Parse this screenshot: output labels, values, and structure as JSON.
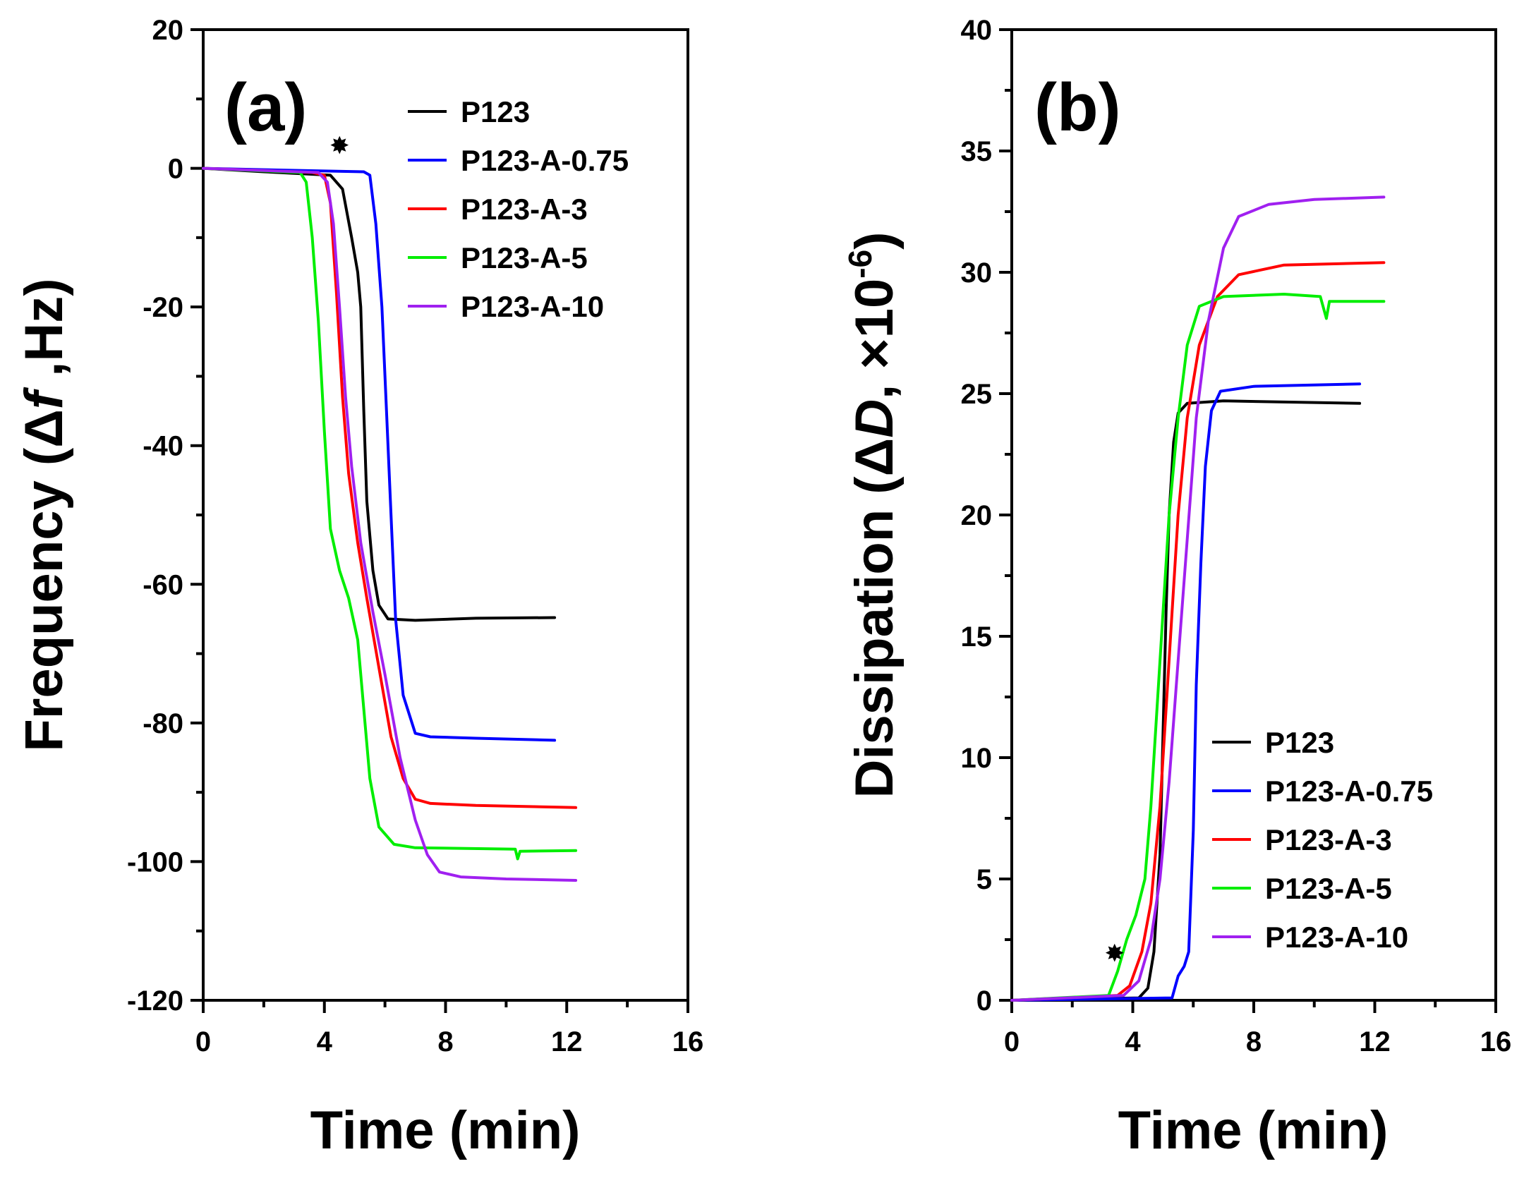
{
  "chart_data": [
    {
      "type": "line",
      "panel_label": "(a)",
      "xlabel": "Time (min)",
      "ylabel_prefix": "Frequency (Δ",
      "ylabel_italic": "f",
      "ylabel_suffix": " ,Hz)",
      "xlim": [
        0,
        16
      ],
      "ylim": [
        -120,
        20
      ],
      "xticks": [
        0,
        4,
        8,
        12,
        16
      ],
      "xtick_labels": [
        "0",
        "4",
        "8",
        "12",
        "16"
      ],
      "yticks": [
        20,
        0,
        -20,
        -40,
        -60,
        -80,
        -100,
        -120
      ],
      "ytick_labels": [
        "20",
        "0",
        "-20",
        "-40",
        "-60",
        "-80",
        "-100",
        "-120"
      ],
      "grid": false,
      "legend_position": "top-right",
      "marker_symbol": "✸",
      "marker": {
        "x": 4.5,
        "y": 3.5
      },
      "series": [
        {
          "name": "P123",
          "color": "#000000",
          "points": [
            [
              0,
              0
            ],
            [
              2,
              -0.5
            ],
            [
              4.2,
              -1
            ],
            [
              4.6,
              -3
            ],
            [
              4.9,
              -10
            ],
            [
              5.1,
              -15
            ],
            [
              5.2,
              -20
            ],
            [
              5.3,
              -35
            ],
            [
              5.4,
              -48
            ],
            [
              5.6,
              -58
            ],
            [
              5.8,
              -63
            ],
            [
              6.1,
              -65
            ],
            [
              7,
              -65.2
            ],
            [
              9,
              -64.9
            ],
            [
              11.6,
              -64.8
            ]
          ]
        },
        {
          "name": "P123-A-0.75",
          "color": "#0000ff",
          "points": [
            [
              0,
              0
            ],
            [
              3,
              -0.3
            ],
            [
              5.3,
              -0.5
            ],
            [
              5.5,
              -1
            ],
            [
              5.7,
              -8
            ],
            [
              5.9,
              -20
            ],
            [
              6.05,
              -35
            ],
            [
              6.2,
              -50
            ],
            [
              6.35,
              -65
            ],
            [
              6.6,
              -76
            ],
            [
              7,
              -81.5
            ],
            [
              7.5,
              -82
            ],
            [
              9,
              -82.2
            ],
            [
              11.6,
              -82.5
            ]
          ]
        },
        {
          "name": "P123-A-3",
          "color": "#ff0000",
          "points": [
            [
              0,
              0
            ],
            [
              3.6,
              -0.6
            ],
            [
              4.0,
              -1
            ],
            [
              4.2,
              -5
            ],
            [
              4.4,
              -18
            ],
            [
              4.6,
              -33
            ],
            [
              4.8,
              -44
            ],
            [
              5.1,
              -54
            ],
            [
              5.4,
              -62
            ],
            [
              5.8,
              -72
            ],
            [
              6.2,
              -82
            ],
            [
              6.6,
              -88
            ],
            [
              7.0,
              -91
            ],
            [
              7.5,
              -91.6
            ],
            [
              9,
              -91.9
            ],
            [
              12.3,
              -92.2
            ]
          ]
        },
        {
          "name": "P123-A-5",
          "color": "#00ee00",
          "points": [
            [
              0,
              0
            ],
            [
              3.2,
              -0.6
            ],
            [
              3.4,
              -2
            ],
            [
              3.6,
              -10
            ],
            [
              3.8,
              -22
            ],
            [
              4.0,
              -38
            ],
            [
              4.2,
              -52
            ],
            [
              4.5,
              -58
            ],
            [
              4.8,
              -62
            ],
            [
              5.1,
              -68
            ],
            [
              5.3,
              -78
            ],
            [
              5.5,
              -88
            ],
            [
              5.8,
              -95
            ],
            [
              6.3,
              -97.5
            ],
            [
              7,
              -98
            ],
            [
              10.3,
              -98.2
            ],
            [
              10.38,
              -99.6
            ],
            [
              10.46,
              -98.5
            ],
            [
              12.3,
              -98.4
            ]
          ]
        },
        {
          "name": "P123-A-10",
          "color": "#a020f0",
          "points": [
            [
              0,
              0
            ],
            [
              3.8,
              -0.6
            ],
            [
              4.1,
              -2
            ],
            [
              4.3,
              -8
            ],
            [
              4.5,
              -20
            ],
            [
              4.7,
              -33
            ],
            [
              4.9,
              -43
            ],
            [
              5.2,
              -54
            ],
            [
              5.6,
              -64
            ],
            [
              6.0,
              -73
            ],
            [
              6.5,
              -85
            ],
            [
              7.0,
              -94
            ],
            [
              7.4,
              -99
            ],
            [
              7.8,
              -101.5
            ],
            [
              8.5,
              -102.2
            ],
            [
              10,
              -102.5
            ],
            [
              12.3,
              -102.7
            ]
          ]
        }
      ]
    },
    {
      "type": "line",
      "panel_label": "(b)",
      "xlabel": "Time (min)",
      "ylabel_prefix": "Dissipation (Δ",
      "ylabel_italic": "D",
      "ylabel_suffix": ", ×10",
      "ylabel_exp": "-6",
      "ylabel_close": ")",
      "xlim": [
        0,
        16
      ],
      "ylim": [
        0,
        40
      ],
      "xticks": [
        0,
        4,
        8,
        12,
        16
      ],
      "xtick_labels": [
        "0",
        "4",
        "8",
        "12",
        "16"
      ],
      "yticks": [
        0,
        5,
        10,
        15,
        20,
        25,
        30,
        35,
        40
      ],
      "ytick_labels": [
        "0",
        "5",
        "10",
        "15",
        "20",
        "25",
        "30",
        "35",
        "40"
      ],
      "grid": false,
      "legend_position": "bottom-right",
      "marker_symbol": "✸",
      "marker": {
        "x": 3.4,
        "y": 2.0
      },
      "series": [
        {
          "name": "P123",
          "color": "#000000",
          "points": [
            [
              0,
              0
            ],
            [
              4.2,
              0.1
            ],
            [
              4.5,
              0.5
            ],
            [
              4.7,
              2
            ],
            [
              4.9,
              6
            ],
            [
              5.0,
              11
            ],
            [
              5.1,
              16
            ],
            [
              5.2,
              20
            ],
            [
              5.35,
              23
            ],
            [
              5.5,
              24.2
            ],
            [
              5.8,
              24.6
            ],
            [
              7,
              24.7
            ],
            [
              11.5,
              24.6
            ]
          ]
        },
        {
          "name": "P123-A-0.75",
          "color": "#0000ff",
          "points": [
            [
              0,
              0
            ],
            [
              5.3,
              0.1
            ],
            [
              5.5,
              1
            ],
            [
              5.7,
              1.4
            ],
            [
              5.85,
              2
            ],
            [
              6.0,
              7
            ],
            [
              6.1,
              13
            ],
            [
              6.25,
              18
            ],
            [
              6.4,
              22
            ],
            [
              6.6,
              24.3
            ],
            [
              6.9,
              25.1
            ],
            [
              8,
              25.3
            ],
            [
              11.5,
              25.4
            ]
          ]
        },
        {
          "name": "P123-A-3",
          "color": "#ff0000",
          "points": [
            [
              0,
              0
            ],
            [
              3.5,
              0.2
            ],
            [
              3.9,
              0.6
            ],
            [
              4.3,
              2
            ],
            [
              4.6,
              4
            ],
            [
              4.9,
              8
            ],
            [
              5.1,
              12
            ],
            [
              5.3,
              16
            ],
            [
              5.5,
              20
            ],
            [
              5.8,
              24
            ],
            [
              6.2,
              27
            ],
            [
              6.8,
              29
            ],
            [
              7.5,
              29.9
            ],
            [
              9,
              30.3
            ],
            [
              12.3,
              30.4
            ]
          ]
        },
        {
          "name": "P123-A-5",
          "color": "#00ee00",
          "points": [
            [
              0,
              0
            ],
            [
              3.2,
              0.2
            ],
            [
              3.5,
              1.2
            ],
            [
              3.8,
              2.5
            ],
            [
              4.1,
              3.5
            ],
            [
              4.4,
              5
            ],
            [
              4.6,
              8
            ],
            [
              4.8,
              12
            ],
            [
              5.0,
              16
            ],
            [
              5.2,
              20
            ],
            [
              5.5,
              24
            ],
            [
              5.8,
              27
            ],
            [
              6.2,
              28.6
            ],
            [
              7,
              29
            ],
            [
              9,
              29.1
            ],
            [
              10.2,
              29.0
            ],
            [
              10.4,
              28.1
            ],
            [
              10.5,
              28.8
            ],
            [
              12.3,
              28.8
            ]
          ]
        },
        {
          "name": "P123-A-10",
          "color": "#a020f0",
          "points": [
            [
              0,
              0
            ],
            [
              3.7,
              0.2
            ],
            [
              4.2,
              0.8
            ],
            [
              4.6,
              2.5
            ],
            [
              4.9,
              5
            ],
            [
              5.2,
              9
            ],
            [
              5.5,
              14
            ],
            [
              5.8,
              19
            ],
            [
              6.1,
              24
            ],
            [
              6.5,
              28
            ],
            [
              7.0,
              31
            ],
            [
              7.5,
              32.3
            ],
            [
              8.5,
              32.8
            ],
            [
              10,
              33
            ],
            [
              12.3,
              33.1
            ]
          ]
        }
      ]
    }
  ]
}
